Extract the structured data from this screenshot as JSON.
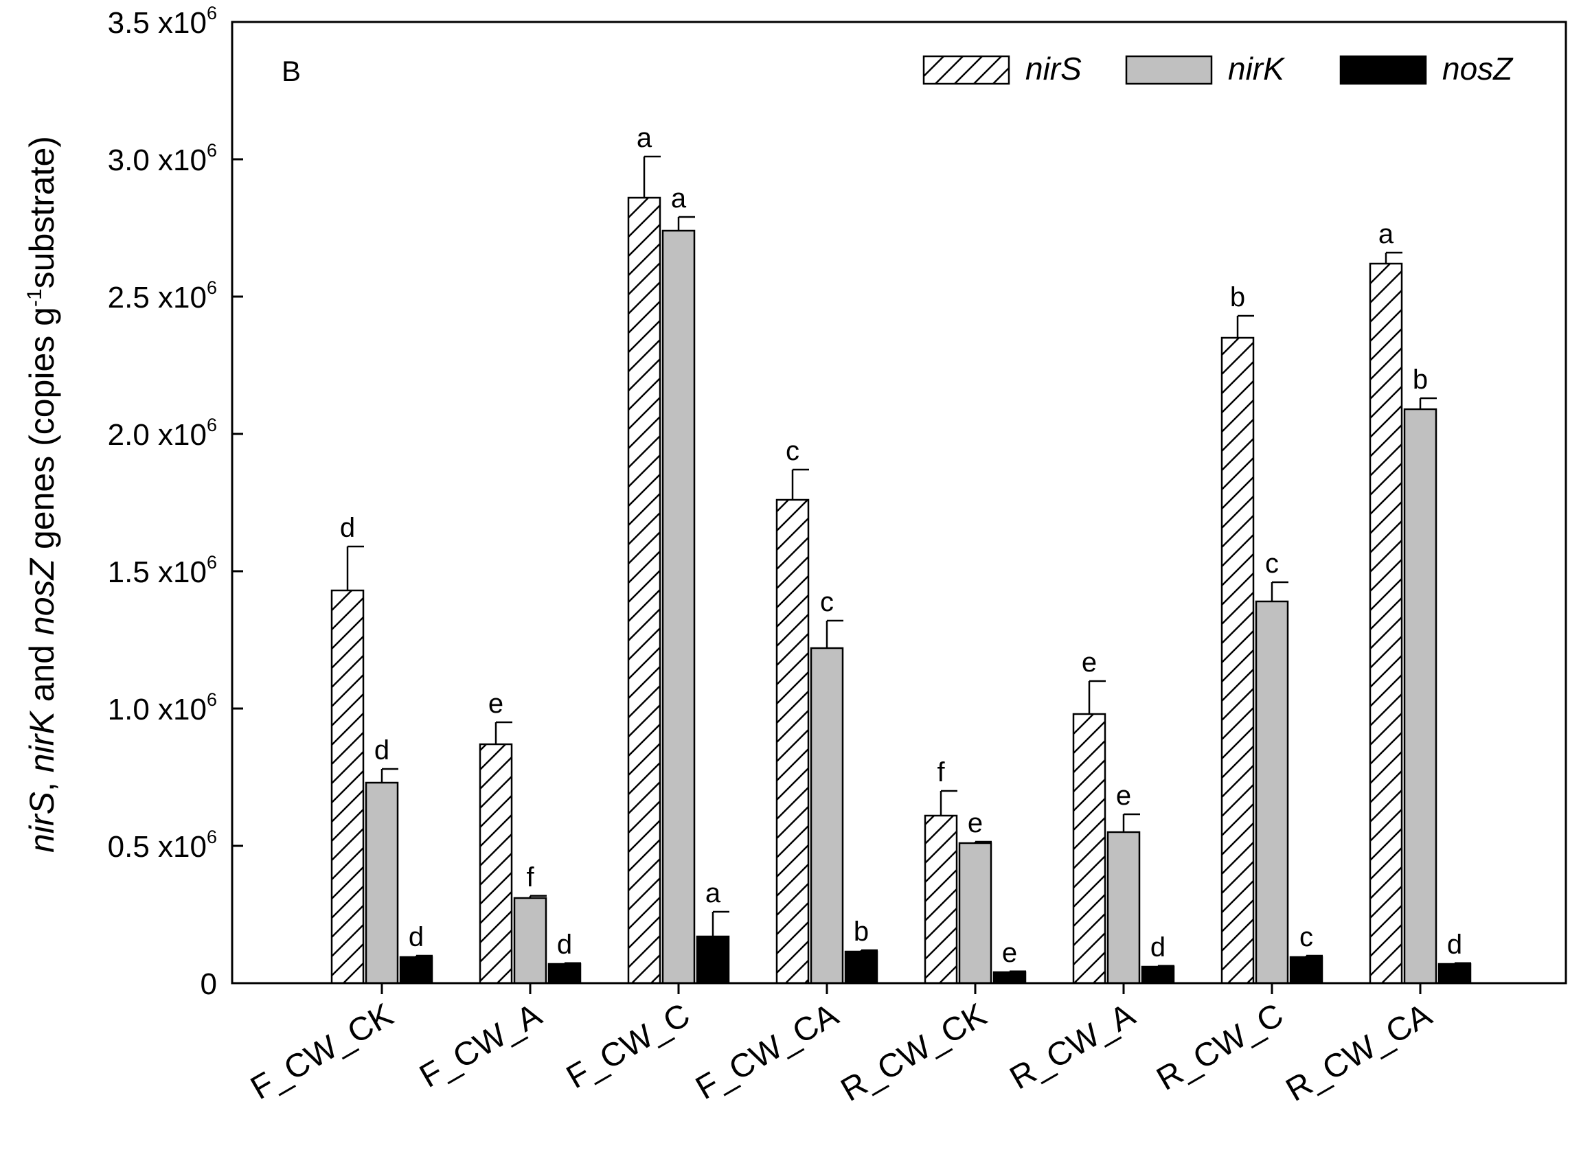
{
  "chart_data": {
    "type": "bar",
    "panel_label": "B",
    "ylim": [
      0,
      3500000
    ],
    "y_ticks": [
      {
        "value": 0,
        "mantissa": "0",
        "exponent": ""
      },
      {
        "value": 500000,
        "mantissa": "0.5 x10",
        "exponent": "6"
      },
      {
        "value": 1000000,
        "mantissa": "1.0 x10",
        "exponent": "6"
      },
      {
        "value": 1500000,
        "mantissa": "1.5 x10",
        "exponent": "6"
      },
      {
        "value": 2000000,
        "mantissa": "2.0 x10",
        "exponent": "6"
      },
      {
        "value": 2500000,
        "mantissa": "2.5 x10",
        "exponent": "6"
      },
      {
        "value": 3000000,
        "mantissa": "3.0 x10",
        "exponent": "6"
      },
      {
        "value": 3500000,
        "mantissa": "3.5 x10",
        "exponent": "6"
      }
    ],
    "ylabel": {
      "g1": "nirS",
      "sep1": ", ",
      "g2": "nirK",
      "sep2": " and ",
      "g3": "nosZ",
      "rest": " genes (copies g",
      "sup": "-1",
      "end": "substrate)"
    },
    "categories": [
      "F_CW_CK",
      "F_CW_A",
      "F_CW_C",
      "F_CW_CA",
      "R_CW_CK",
      "R_CW_A",
      "R_CW_C",
      "R_CW_CA"
    ],
    "series": [
      {
        "name": "nirS",
        "style": "hatched",
        "values": [
          1430000,
          870000,
          2860000,
          1760000,
          610000,
          980000,
          2350000,
          2620000
        ],
        "errors": [
          160000,
          80000,
          150000,
          110000,
          90000,
          120000,
          80000,
          40000
        ],
        "letters": [
          "d",
          "e",
          "a",
          "c",
          "f",
          "e",
          "b",
          "a"
        ]
      },
      {
        "name": "nirK",
        "style": "gray",
        "values": [
          730000,
          310000,
          2740000,
          1220000,
          510000,
          550000,
          1390000,
          2090000
        ],
        "errors": [
          50000,
          8000,
          50000,
          100000,
          5000,
          65000,
          70000,
          40000
        ],
        "letters": [
          "d",
          "f",
          "a",
          "c",
          "e",
          "e",
          "c",
          "b"
        ]
      },
      {
        "name": "nosZ",
        "style": "black",
        "values": [
          95000,
          70000,
          170000,
          115000,
          40000,
          60000,
          95000,
          70000
        ],
        "errors": [
          5000,
          3000,
          90000,
          5000,
          3000,
          3000,
          5000,
          3000
        ],
        "letters": [
          "d",
          "d",
          "a",
          "b",
          "e",
          "d",
          "c",
          "d"
        ]
      }
    ],
    "legend": {
      "position": "top-right",
      "entries": [
        "nirS",
        "nirK",
        "nosZ"
      ]
    },
    "colors": {
      "gray": "#c0c0c0",
      "black": "#000000",
      "background": "#ffffff"
    }
  }
}
